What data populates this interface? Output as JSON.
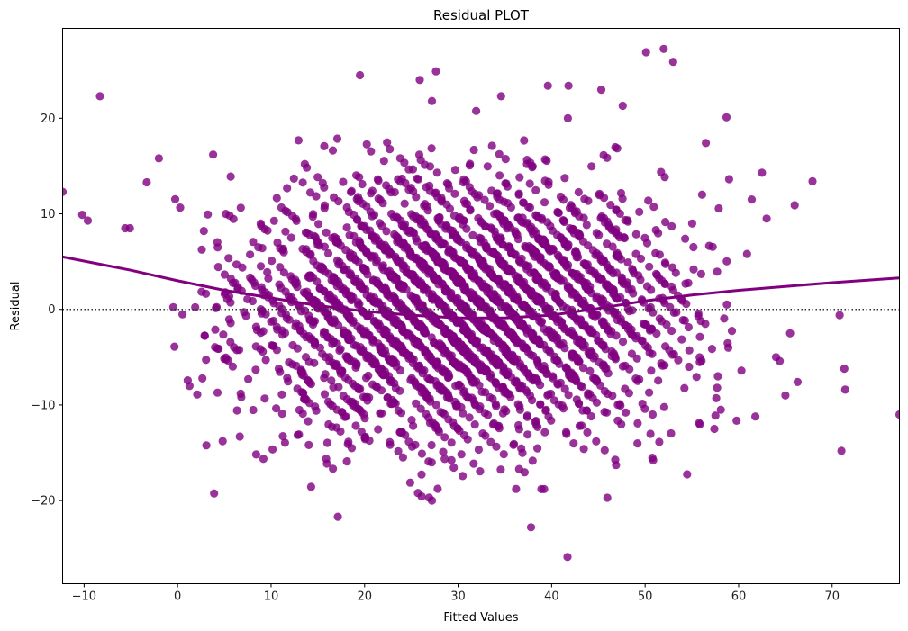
{
  "chart_data": {
    "type": "scatter",
    "title": "Residual PLOT",
    "xlabel": "Fitted Values",
    "ylabel": "Residual",
    "xlim": [
      -12.3,
      77.2
    ],
    "ylim": [
      -28.7,
      29.4
    ],
    "xticks": [
      -10,
      0,
      10,
      20,
      30,
      40,
      50,
      60,
      70
    ],
    "yticks": [
      -20,
      -10,
      0,
      10,
      20
    ],
    "xtick_labels": [
      "−10",
      "0",
      "10",
      "20",
      "30",
      "40",
      "50",
      "60",
      "70"
    ],
    "ytick_labels": [
      "−20",
      "−10",
      "0",
      "10",
      "20"
    ],
    "grid": false,
    "colors": {
      "points": "#800080",
      "lowess": "#800080",
      "zero_line": "#333333"
    },
    "zero_line": {
      "y": 0,
      "style": "dotted"
    },
    "lowess": {
      "x": [
        -12.3,
        -5,
        0,
        5,
        10,
        15,
        20,
        25,
        30,
        35,
        40,
        45,
        50,
        55,
        60,
        65,
        70,
        77.2
      ],
      "y": [
        5.5,
        4.1,
        3.0,
        2.0,
        1.2,
        0.4,
        -0.2,
        -0.6,
        -0.9,
        -0.9,
        -0.6,
        0.1,
        0.9,
        1.5,
        2.0,
        2.4,
        2.8,
        3.3
      ]
    },
    "points_outliers": {
      "x": [
        -12.3,
        -10.2,
        -9.6,
        -8.3,
        -5.6,
        -5.1,
        -2.0,
        -3.3,
        3.8,
        19.5,
        25.9,
        27.2,
        34.6,
        39.6,
        41.8,
        50.1,
        53.0,
        37.8,
        41.7,
        26.9,
        27.2,
        38.9,
        39.2,
        47.6,
        56.5,
        58.7,
        62.5,
        66.0,
        67.9,
        70.8,
        71.0,
        71.3,
        71.4,
        77.2,
        65.0,
        65.5,
        66.3,
        64.0,
        64.4,
        61.8,
        60.3,
        58.1,
        57.4,
        57.7,
        63.0,
        61.4,
        60.9
      ],
      "y": [
        12.3,
        9.9,
        9.3,
        22.3,
        8.5,
        8.5,
        15.8,
        13.3,
        16.2,
        24.5,
        24.0,
        21.8,
        22.3,
        23.4,
        23.4,
        26.9,
        25.9,
        -22.8,
        -25.9,
        -19.7,
        -20.0,
        -18.8,
        -18.8,
        21.3,
        17.4,
        20.1,
        14.3,
        10.9,
        13.4,
        -0.6,
        -14.8,
        -6.2,
        -8.4,
        -11.0,
        -9.0,
        -2.5,
        -7.6,
        -5.0,
        -5.4,
        -11.2,
        -6.4,
        -10.5,
        -12.5,
        -8.2,
        9.5,
        11.5,
        5.8
      ]
    },
    "bulk_band": {
      "n_points": 3000,
      "x_range": [
        -1,
        60
      ],
      "residual_sd": 6.6
    }
  }
}
